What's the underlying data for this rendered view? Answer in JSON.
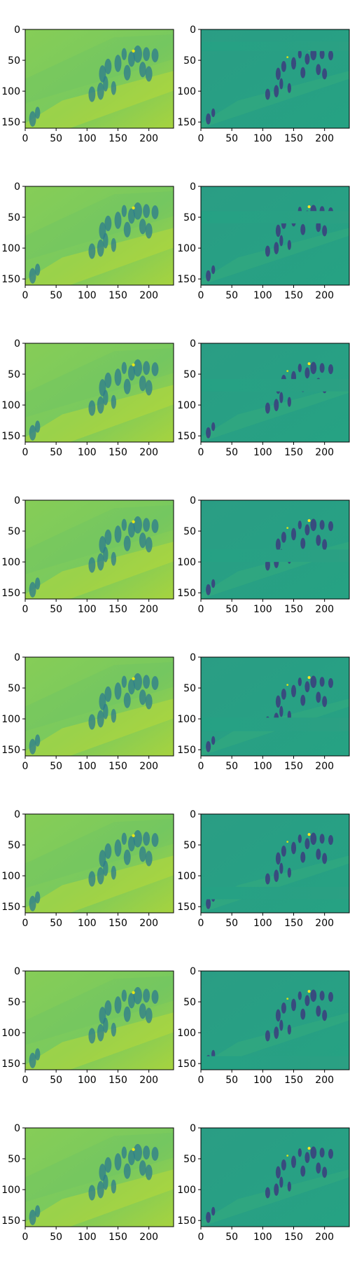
{
  "figure": {
    "grid": {
      "rows": 8,
      "cols": 2
    },
    "image_shape": {
      "width": 240,
      "height": 160
    },
    "colormap": "viridis",
    "x_ticks": [
      "0",
      "50",
      "100",
      "150",
      "200"
    ],
    "y_ticks": [
      "0",
      "50",
      "100",
      "150"
    ],
    "x_tick_values": [
      0,
      50,
      100,
      150,
      200
    ],
    "y_tick_values": [
      0,
      50,
      100,
      150
    ],
    "left_column": {
      "description": "blurred reconstruction heatmap",
      "base_color": "#7fcc5a"
    },
    "right_column": {
      "description": "detail / residual heatmap",
      "base_color": "#22a086"
    },
    "masked_band_rows": [
      [
        20,
        35
      ],
      [
        40,
        60
      ],
      [
        58,
        78
      ],
      [
        80,
        100
      ],
      [
        98,
        120
      ],
      [
        118,
        138
      ],
      [
        138,
        160
      ],
      [
        0,
        0
      ]
    ]
  }
}
